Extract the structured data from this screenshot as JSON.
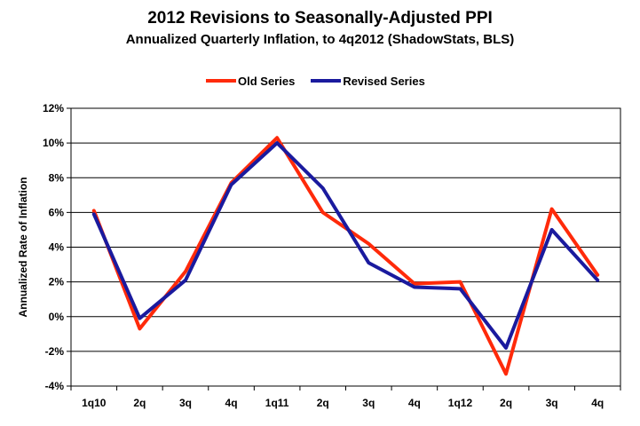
{
  "chart_data": {
    "type": "line",
    "title": "2012 Revisions to Seasonally-Adjusted PPI",
    "subtitle": "Annualized Quarterly Inflation, to 4q2012 (ShadowStats, BLS)",
    "xlabel": "",
    "ylabel": "Annualized Rate of Inflation",
    "ylim": [
      -4,
      12
    ],
    "ytick_step": 2,
    "ytick_labels": [
      "12%",
      "10%",
      "8%",
      "6%",
      "4%",
      "2%",
      "0%",
      "-2%",
      "-4%"
    ],
    "categories": [
      "1q10",
      "2q",
      "3q",
      "4q",
      "1q11",
      "2q",
      "3q",
      "4q",
      "1q12",
      "2q",
      "3q",
      "4q"
    ],
    "grid": true,
    "legend_position": "top",
    "series": [
      {
        "name": "Old Series",
        "color": "#ff2a0a",
        "values": [
          6.1,
          -0.7,
          2.6,
          7.7,
          10.3,
          6.0,
          4.2,
          1.9,
          2.0,
          -3.3,
          6.2,
          2.4
        ]
      },
      {
        "name": "Revised Series",
        "color": "#1a1a9e",
        "values": [
          5.9,
          -0.1,
          2.1,
          7.6,
          10.0,
          7.4,
          3.1,
          1.7,
          1.6,
          -1.8,
          5.0,
          2.1
        ]
      }
    ]
  }
}
